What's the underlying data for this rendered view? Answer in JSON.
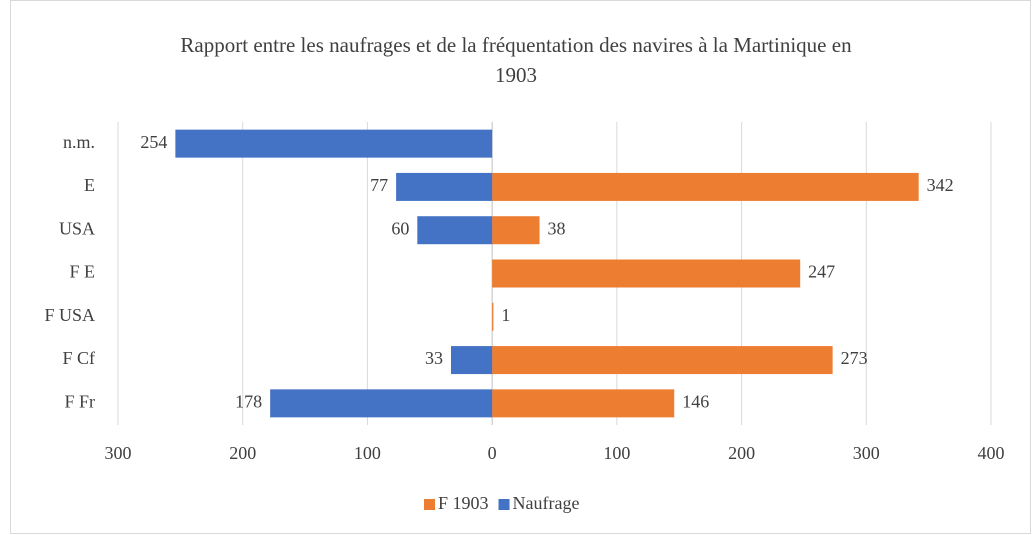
{
  "chart_data": {
    "type": "bar",
    "orientation": "horizontal",
    "title": "Rapport entre les naufrages et de la fréquentation des navires à la Martinique en 1903",
    "categories": [
      "n.m.",
      "E",
      "USA",
      "F E",
      "F USA",
      "F Cf",
      "F Fr"
    ],
    "series": [
      {
        "name": "F 1903",
        "color": "#ED7D31",
        "values": [
          null,
          342,
          38,
          247,
          1,
          273,
          146
        ]
      },
      {
        "name": "Naufrage",
        "color": "#4472C4",
        "values": [
          -254,
          -77,
          -60,
          null,
          null,
          -33,
          -178
        ],
        "value_labels": [
          "254",
          "77",
          "60",
          null,
          null,
          "33",
          "178"
        ]
      }
    ],
    "xlim": [
      -300,
      400
    ],
    "xticks": [
      {
        "value": -300,
        "label": "300"
      },
      {
        "value": -200,
        "label": "200"
      },
      {
        "value": -100,
        "label": "100"
      },
      0,
      100,
      200,
      300,
      400
    ],
    "grid": true,
    "legend": "bottom"
  }
}
